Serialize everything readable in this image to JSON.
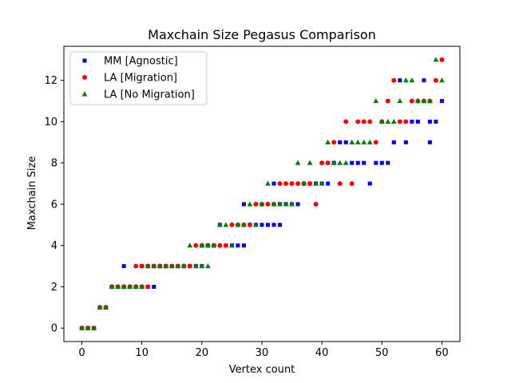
{
  "chart_data": {
    "type": "scatter",
    "title": "Maxchain Size Pegasus Comparison",
    "xlabel": "Vertex count",
    "ylabel": "Maxchain Size",
    "xlim": [
      -3,
      63
    ],
    "ylim": [
      -0.65,
      13.65
    ],
    "xticks": [
      0,
      10,
      20,
      30,
      40,
      50,
      60
    ],
    "yticks": [
      0,
      2,
      4,
      6,
      8,
      10,
      12
    ],
    "grid": false,
    "legend_position": "top-left",
    "series": [
      {
        "name": "MM [Agnostic]",
        "color": "#0000ff",
        "marker": "square",
        "points": [
          [
            0,
            0
          ],
          [
            1,
            0
          ],
          [
            2,
            0
          ],
          [
            3,
            1
          ],
          [
            4,
            1
          ],
          [
            5,
            2
          ],
          [
            6,
            2
          ],
          [
            7,
            3
          ],
          [
            7,
            2
          ],
          [
            8,
            2
          ],
          [
            9,
            2
          ],
          [
            10,
            2
          ],
          [
            11,
            2
          ],
          [
            12,
            2
          ],
          [
            10,
            3
          ],
          [
            11,
            3
          ],
          [
            12,
            3
          ],
          [
            13,
            3
          ],
          [
            14,
            3
          ],
          [
            15,
            3
          ],
          [
            16,
            3
          ],
          [
            17,
            3
          ],
          [
            18,
            3
          ],
          [
            19,
            3
          ],
          [
            20,
            3
          ],
          [
            21,
            4
          ],
          [
            22,
            4
          ],
          [
            23,
            5
          ],
          [
            24,
            4
          ],
          [
            25,
            4
          ],
          [
            26,
            4
          ],
          [
            27,
            4
          ],
          [
            27,
            6
          ],
          [
            28,
            5
          ],
          [
            29,
            5
          ],
          [
            30,
            5
          ],
          [
            31,
            5
          ],
          [
            32,
            5
          ],
          [
            33,
            5
          ],
          [
            32,
            7
          ],
          [
            33,
            6
          ],
          [
            34,
            6
          ],
          [
            35,
            6
          ],
          [
            36,
            6
          ],
          [
            37,
            7
          ],
          [
            38,
            7
          ],
          [
            39,
            7
          ],
          [
            40,
            7
          ],
          [
            41,
            7
          ],
          [
            42,
            8
          ],
          [
            43,
            9
          ],
          [
            44,
            9
          ],
          [
            45,
            8
          ],
          [
            46,
            8
          ],
          [
            47,
            8
          ],
          [
            48,
            7
          ],
          [
            49,
            8
          ],
          [
            50,
            8
          ],
          [
            51,
            8
          ],
          [
            52,
            9
          ],
          [
            53,
            12
          ],
          [
            54,
            9
          ],
          [
            55,
            10
          ],
          [
            56,
            10
          ],
          [
            57,
            12
          ],
          [
            58,
            9
          ],
          [
            58,
            10
          ],
          [
            59,
            10
          ],
          [
            60,
            11
          ]
        ]
      },
      {
        "name": "LA [Migration]",
        "color": "#ff0000",
        "marker": "circle",
        "points": [
          [
            0,
            0
          ],
          [
            1,
            0
          ],
          [
            2,
            0
          ],
          [
            3,
            1
          ],
          [
            4,
            1
          ],
          [
            5,
            2
          ],
          [
            6,
            2
          ],
          [
            7,
            2
          ],
          [
            8,
            2
          ],
          [
            9,
            2
          ],
          [
            10,
            2
          ],
          [
            11,
            2
          ],
          [
            9,
            3
          ],
          [
            10,
            3
          ],
          [
            11,
            3
          ],
          [
            12,
            3
          ],
          [
            13,
            3
          ],
          [
            14,
            3
          ],
          [
            15,
            3
          ],
          [
            16,
            3
          ],
          [
            17,
            3
          ],
          [
            18,
            3
          ],
          [
            19,
            4
          ],
          [
            20,
            4
          ],
          [
            21,
            4
          ],
          [
            22,
            4
          ],
          [
            23,
            4
          ],
          [
            24,
            4
          ],
          [
            25,
            5
          ],
          [
            26,
            5
          ],
          [
            27,
            5
          ],
          [
            28,
            5
          ],
          [
            29,
            6
          ],
          [
            30,
            6
          ],
          [
            31,
            6
          ],
          [
            32,
            6
          ],
          [
            33,
            7
          ],
          [
            34,
            7
          ],
          [
            35,
            7
          ],
          [
            36,
            7
          ],
          [
            37,
            7
          ],
          [
            38,
            7
          ],
          [
            39,
            6
          ],
          [
            40,
            8
          ],
          [
            41,
            8
          ],
          [
            42,
            9
          ],
          [
            43,
            7
          ],
          [
            44,
            10
          ],
          [
            45,
            7
          ],
          [
            46,
            10
          ],
          [
            47,
            10
          ],
          [
            48,
            10
          ],
          [
            49,
            9
          ],
          [
            50,
            10
          ],
          [
            51,
            11
          ],
          [
            52,
            12
          ],
          [
            53,
            10
          ],
          [
            54,
            10
          ],
          [
            55,
            11
          ],
          [
            56,
            11
          ],
          [
            57,
            11
          ],
          [
            58,
            11
          ],
          [
            59,
            12
          ],
          [
            60,
            13
          ]
        ]
      },
      {
        "name": "LA [No Migration]",
        "color": "#008000",
        "marker": "triangle",
        "points": [
          [
            0,
            0
          ],
          [
            1,
            0
          ],
          [
            2,
            0
          ],
          [
            3,
            1
          ],
          [
            4,
            1
          ],
          [
            5,
            2
          ],
          [
            6,
            2
          ],
          [
            7,
            2
          ],
          [
            8,
            2
          ],
          [
            9,
            2
          ],
          [
            10,
            2
          ],
          [
            11,
            3
          ],
          [
            12,
            3
          ],
          [
            13,
            3
          ],
          [
            14,
            3
          ],
          [
            15,
            3
          ],
          [
            16,
            3
          ],
          [
            17,
            3
          ],
          [
            18,
            4
          ],
          [
            19,
            3
          ],
          [
            20,
            3
          ],
          [
            21,
            3
          ],
          [
            20,
            4
          ],
          [
            21,
            4
          ],
          [
            22,
            4
          ],
          [
            23,
            5
          ],
          [
            24,
            5
          ],
          [
            25,
            4
          ],
          [
            26,
            5
          ],
          [
            27,
            5
          ],
          [
            28,
            6
          ],
          [
            29,
            5
          ],
          [
            30,
            6
          ],
          [
            31,
            7
          ],
          [
            32,
            6
          ],
          [
            33,
            6
          ],
          [
            34,
            6
          ],
          [
            35,
            6
          ],
          [
            36,
            8
          ],
          [
            37,
            7
          ],
          [
            38,
            8
          ],
          [
            39,
            7
          ],
          [
            40,
            7
          ],
          [
            41,
            9
          ],
          [
            42,
            8
          ],
          [
            43,
            8
          ],
          [
            44,
            8
          ],
          [
            45,
            9
          ],
          [
            46,
            9
          ],
          [
            47,
            9
          ],
          [
            48,
            9
          ],
          [
            49,
            11
          ],
          [
            50,
            10
          ],
          [
            51,
            10
          ],
          [
            52,
            10
          ],
          [
            53,
            11
          ],
          [
            54,
            12
          ],
          [
            55,
            12
          ],
          [
            56,
            11
          ],
          [
            57,
            11
          ],
          [
            58,
            11
          ],
          [
            59,
            13
          ],
          [
            60,
            12
          ]
        ]
      }
    ]
  }
}
